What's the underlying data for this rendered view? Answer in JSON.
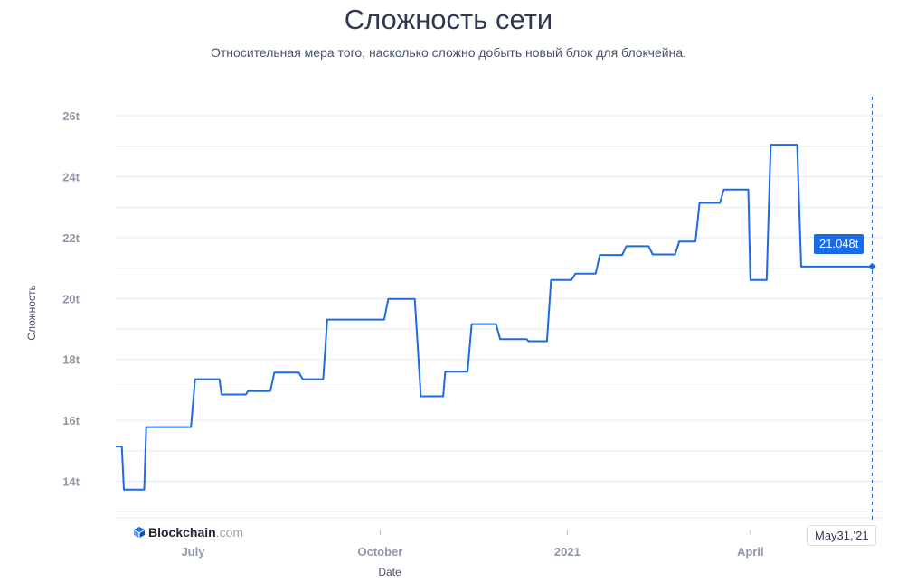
{
  "header": {
    "title": "Сложность сети",
    "subtitle": "Относительная мера того, насколько сложно добыть новый блок для блокчейна."
  },
  "watermark": {
    "brand": "Blockchain",
    "suffix": ".com"
  },
  "tooltip": {
    "value_label": "21.048t",
    "date_label": "May31,'21"
  },
  "colors": {
    "line": "#1c6be4",
    "grid": "#e6e9ef",
    "tooltip_bg": "#1c6be4"
  },
  "chart_data": {
    "type": "line",
    "title": "Сложность сети",
    "xlabel": "Date",
    "ylabel": "Сложность",
    "y_unit": "t",
    "ylim": [
      12.8,
      26.3
    ],
    "xlim": [
      "2020-05-24",
      "2021-06-05"
    ],
    "grid": true,
    "y_ticks": [
      {
        "value": 14,
        "label": "14t"
      },
      {
        "value": 16,
        "label": "16t"
      },
      {
        "value": 18,
        "label": "18t"
      },
      {
        "value": 20,
        "label": "20t"
      },
      {
        "value": 22,
        "label": "22t"
      },
      {
        "value": 24,
        "label": "24t"
      },
      {
        "value": 26,
        "label": "26t"
      }
    ],
    "x_ticks": [
      {
        "date": "2020-07-01",
        "label": "July"
      },
      {
        "date": "2020-10-01",
        "label": "October"
      },
      {
        "date": "2021-01-01",
        "label": "2021"
      },
      {
        "date": "2021-04-01",
        "label": "April"
      }
    ],
    "series": [
      {
        "points": [
          [
            "2020-05-24",
            15.14
          ],
          [
            "2020-05-27",
            15.14
          ],
          [
            "2020-05-28",
            13.73
          ],
          [
            "2020-06-07",
            13.73
          ],
          [
            "2020-06-08",
            15.78
          ],
          [
            "2020-06-30",
            15.78
          ],
          [
            "2020-07-02",
            17.35
          ],
          [
            "2020-07-14",
            17.35
          ],
          [
            "2020-07-15",
            16.85
          ],
          [
            "2020-07-27",
            16.85
          ],
          [
            "2020-07-28",
            16.96
          ],
          [
            "2020-08-08",
            16.96
          ],
          [
            "2020-08-10",
            17.57
          ],
          [
            "2020-08-22",
            17.57
          ],
          [
            "2020-08-24",
            17.35
          ],
          [
            "2020-09-03",
            17.35
          ],
          [
            "2020-09-05",
            19.31
          ],
          [
            "2020-09-19",
            19.31
          ],
          [
            "2020-09-21",
            19.31
          ],
          [
            "2020-10-03",
            19.31
          ],
          [
            "2020-10-05",
            19.99
          ],
          [
            "2020-10-18",
            19.99
          ],
          [
            "2020-10-21",
            16.79
          ],
          [
            "2020-11-01",
            16.79
          ],
          [
            "2020-11-02",
            17.6
          ],
          [
            "2020-11-13",
            17.6
          ],
          [
            "2020-11-15",
            19.16
          ],
          [
            "2020-11-27",
            19.16
          ],
          [
            "2020-11-29",
            18.67
          ],
          [
            "2020-12-12",
            18.67
          ],
          [
            "2020-12-13",
            18.6
          ],
          [
            "2020-12-22",
            18.6
          ],
          [
            "2020-12-24",
            20.61
          ],
          [
            "2021-01-03",
            20.61
          ],
          [
            "2021-01-05",
            20.82
          ],
          [
            "2021-01-15",
            20.82
          ],
          [
            "2021-01-17",
            21.43
          ],
          [
            "2021-01-28",
            21.43
          ],
          [
            "2021-01-30",
            21.72
          ],
          [
            "2021-02-10",
            21.72
          ],
          [
            "2021-02-12",
            21.45
          ],
          [
            "2021-02-23",
            21.45
          ],
          [
            "2021-02-25",
            21.87
          ],
          [
            "2021-03-05",
            21.87
          ],
          [
            "2021-03-07",
            23.14
          ],
          [
            "2021-03-17",
            23.14
          ],
          [
            "2021-03-19",
            23.58
          ],
          [
            "2021-03-31",
            23.58
          ],
          [
            "2021-04-01",
            20.61
          ],
          [
            "2021-04-09",
            20.61
          ],
          [
            "2021-04-11",
            25.05
          ],
          [
            "2021-04-24",
            25.05
          ],
          [
            "2021-04-26",
            21.05
          ],
          [
            "2021-05-31",
            21.05
          ]
        ]
      }
    ],
    "highlight": {
      "date": "2021-05-31",
      "value": 21.048
    }
  }
}
